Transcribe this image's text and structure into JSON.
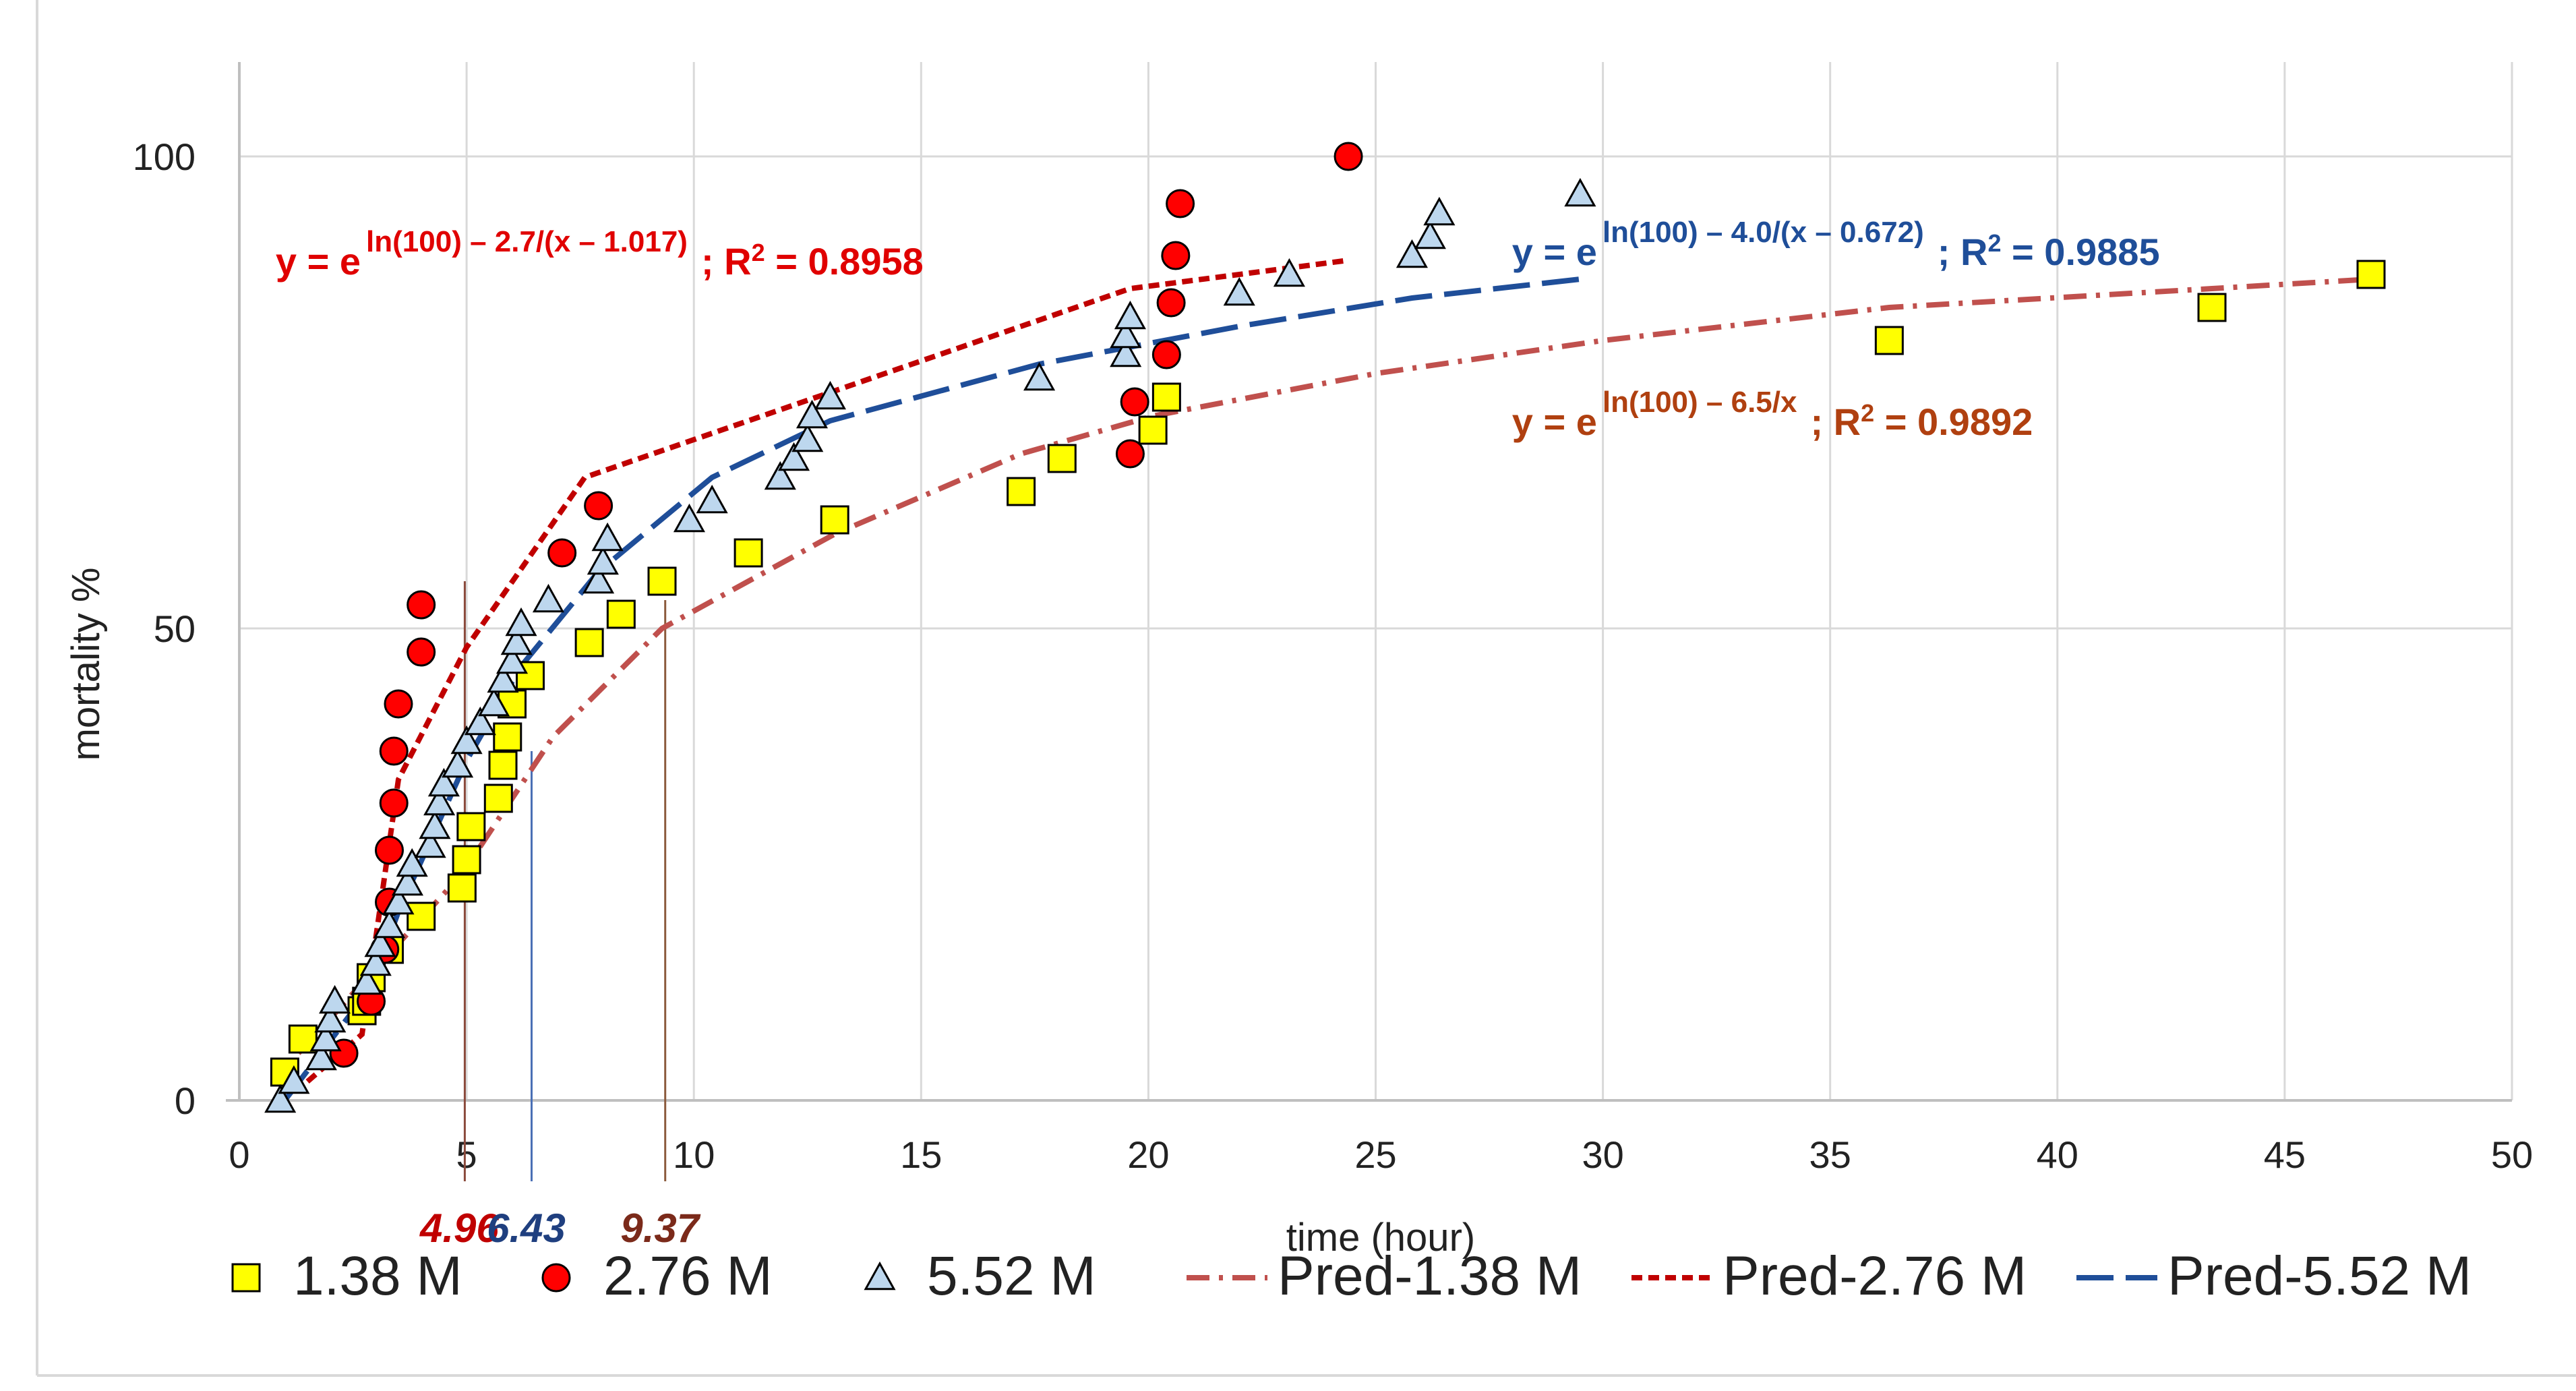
{
  "chart_data": {
    "type": "scatter",
    "xlabel": "time (hour)",
    "ylabel": "mortality %",
    "xlim": [
      0,
      50
    ],
    "ylim": [
      0,
      100
    ],
    "x_ticks": [
      "0",
      "5",
      "10",
      "15",
      "20",
      "25",
      "30",
      "35",
      "40",
      "45",
      "50"
    ],
    "y_ticks": [
      "0",
      "50",
      "100"
    ],
    "grid": "on",
    "legend_position": "bottom",
    "series": [
      {
        "name": "1.38 M",
        "kind": "points",
        "marker": "square",
        "color": "#ffff00",
        "points": [
          [
            1.0,
            3.0
          ],
          [
            1.4,
            6.5
          ],
          [
            2.7,
            9.5
          ],
          [
            2.8,
            10.5
          ],
          [
            2.9,
            13.0
          ],
          [
            3.3,
            16.0
          ],
          [
            4.0,
            19.5
          ],
          [
            4.9,
            22.5
          ],
          [
            5.0,
            25.5
          ],
          [
            5.1,
            29.0
          ],
          [
            5.7,
            32.0
          ],
          [
            5.8,
            35.5
          ],
          [
            5.9,
            38.5
          ],
          [
            6.0,
            42.0
          ],
          [
            6.4,
            45.0
          ],
          [
            7.7,
            48.5
          ],
          [
            8.4,
            51.5
          ],
          [
            9.3,
            55.0
          ],
          [
            11.2,
            58.0
          ],
          [
            13.1,
            61.5
          ],
          [
            17.2,
            64.5
          ],
          [
            18.1,
            68.0
          ],
          [
            20.1,
            71.0
          ],
          [
            20.4,
            74.5
          ],
          [
            36.3,
            80.5
          ],
          [
            43.4,
            84.0
          ],
          [
            46.9,
            87.5
          ]
        ]
      },
      {
        "name": "2.76 M",
        "kind": "points",
        "marker": "circle",
        "color": "#ff0000",
        "points": [
          [
            2.3,
            5.0
          ],
          [
            2.9,
            10.5
          ],
          [
            3.2,
            16.0
          ],
          [
            3.3,
            21.0
          ],
          [
            3.3,
            26.5
          ],
          [
            3.4,
            31.5
          ],
          [
            3.4,
            37.0
          ],
          [
            3.5,
            42.0
          ],
          [
            4.0,
            47.5
          ],
          [
            4.0,
            52.5
          ],
          [
            7.1,
            58.0
          ],
          [
            7.9,
            63.0
          ],
          [
            19.6,
            68.5
          ],
          [
            19.7,
            74.0
          ],
          [
            20.4,
            79.0
          ],
          [
            20.5,
            84.5
          ],
          [
            20.6,
            89.5
          ],
          [
            20.7,
            95.0
          ],
          [
            24.4,
            100.0
          ]
        ]
      },
      {
        "name": "5.52 M",
        "kind": "points",
        "marker": "triangle",
        "color": "#bdd7ee",
        "points": [
          [
            0.9,
            0.0
          ],
          [
            1.2,
            2.0
          ],
          [
            1.8,
            4.5
          ],
          [
            1.9,
            6.5
          ],
          [
            2.0,
            8.5
          ],
          [
            2.1,
            10.5
          ],
          [
            2.8,
            12.5
          ],
          [
            3.0,
            14.5
          ],
          [
            3.1,
            16.5
          ],
          [
            3.3,
            18.5
          ],
          [
            3.5,
            21.0
          ],
          [
            3.7,
            23.0
          ],
          [
            3.8,
            25.0
          ],
          [
            4.2,
            27.0
          ],
          [
            4.3,
            29.0
          ],
          [
            4.4,
            31.5
          ],
          [
            4.5,
            33.5
          ],
          [
            4.8,
            35.5
          ],
          [
            5.0,
            38.0
          ],
          [
            5.3,
            40.0
          ],
          [
            5.6,
            42.0
          ],
          [
            5.8,
            44.5
          ],
          [
            6.0,
            46.5
          ],
          [
            6.1,
            48.5
          ],
          [
            6.2,
            50.5
          ],
          [
            6.8,
            53.0
          ],
          [
            7.9,
            55.0
          ],
          [
            8.0,
            57.0
          ],
          [
            8.1,
            59.5
          ],
          [
            9.9,
            61.5
          ],
          [
            10.4,
            63.5
          ],
          [
            11.9,
            66.0
          ],
          [
            12.2,
            68.0
          ],
          [
            12.5,
            70.0
          ],
          [
            12.6,
            72.5
          ],
          [
            13.0,
            74.5
          ],
          [
            17.6,
            76.5
          ],
          [
            19.5,
            79.0
          ],
          [
            19.5,
            81.0
          ],
          [
            19.6,
            83.0
          ],
          [
            22.0,
            85.5
          ],
          [
            23.1,
            87.5
          ],
          [
            25.8,
            89.5
          ],
          [
            26.2,
            91.5
          ],
          [
            26.4,
            94.0
          ],
          [
            29.5,
            96.0
          ]
        ]
      },
      {
        "name": "Pred-1.38 M",
        "kind": "line",
        "dash": "dash-dot",
        "color": "#c0504d",
        "points": [
          [
            1.3,
            5.0
          ],
          [
            4.9,
            24.0
          ],
          [
            6.9,
            38.5
          ],
          [
            9.3,
            50.0
          ],
          [
            13.1,
            60.0
          ],
          [
            17.2,
            68.5
          ],
          [
            20.1,
            72.5
          ],
          [
            25.0,
            77.0
          ],
          [
            30.0,
            80.5
          ],
          [
            36.3,
            84.0
          ],
          [
            43.4,
            86.0
          ],
          [
            46.9,
            87.0
          ]
        ]
      },
      {
        "name": "Pred-2.76 M",
        "kind": "line",
        "dash": "short-dash",
        "color": "#c00000",
        "points": [
          [
            1.5,
            2.0
          ],
          [
            2.7,
            7.0
          ],
          [
            3.5,
            34.0
          ],
          [
            5.0,
            48.0
          ],
          [
            7.6,
            66.0
          ],
          [
            13.0,
            75.0
          ],
          [
            19.6,
            86.0
          ],
          [
            24.4,
            89.0
          ]
        ]
      },
      {
        "name": "Pred-5.52 M",
        "kind": "line",
        "dash": "long-dash",
        "color": "#1f4e99",
        "points": [
          [
            1.0,
            0.0
          ],
          [
            2.9,
            12.0
          ],
          [
            3.5,
            20.0
          ],
          [
            5.0,
            36.0
          ],
          [
            6.2,
            46.0
          ],
          [
            7.9,
            56.0
          ],
          [
            10.4,
            66.0
          ],
          [
            13.0,
            72.0
          ],
          [
            17.6,
            78.0
          ],
          [
            22.0,
            82.0
          ],
          [
            25.8,
            85.0
          ],
          [
            29.5,
            87.0
          ]
        ]
      }
    ],
    "reference_lines": [
      {
        "label": "4.96",
        "x": 4.96,
        "y_top": 55,
        "color": "#c00000",
        "line_color": "#8b4a3c"
      },
      {
        "label": "6.43",
        "x": 6.43,
        "y_top": 37,
        "color": "#1f3f7f",
        "line_color": "#4a6fb5"
      },
      {
        "label": "9.37",
        "x": 9.37,
        "y_top": 53,
        "color": "#7b2a1a",
        "line_color": "#8b5a3c"
      }
    ],
    "equations": [
      {
        "base": "y = e",
        "exponent": "ln(100) – 2.7/(x – 1.017)",
        "tail": "; ",
        "r2_label": "R",
        "r2_sup": "2",
        "r2_value": " = 0.8958",
        "color": "#e00000",
        "x": 0.8,
        "y": 87.5
      },
      {
        "base": "y = e",
        "exponent": "ln(100) – 4.0/(x –  0.672)",
        "tail": "; ",
        "r2_label": "R",
        "r2_sup": "2",
        "r2_value": " = 0.9885",
        "color": "#1f4e99",
        "x": 28.0,
        "y": 88.5
      },
      {
        "base": "y =  e",
        "exponent": "ln(100) – 6.5/x",
        "tail": ";  ",
        "r2_label": "R",
        "r2_sup": "2",
        "r2_value": " = 0.9892",
        "color": "#b04010",
        "x": 28.0,
        "y": 70.5
      }
    ]
  }
}
